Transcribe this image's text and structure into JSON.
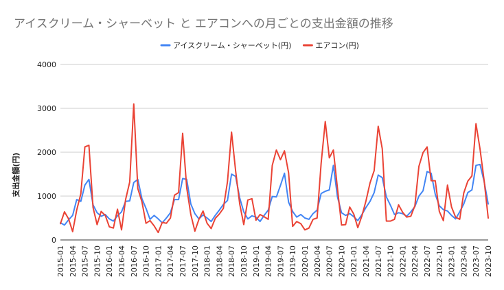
{
  "chart_data": {
    "type": "line",
    "title": "アイスクリーム・シャーベット と エアコンへの月ごとの支出金額の推移",
    "xlabel": "",
    "ylabel": "支出金額(円)",
    "ylim": [
      0,
      4000
    ],
    "yticks": [
      "0",
      "1000",
      "2000",
      "3000",
      "4000"
    ],
    "grid": true,
    "legend_position": "top",
    "x": [
      "2015-01",
      "2015-02",
      "2015-03",
      "2015-04",
      "2015-05",
      "2015-06",
      "2015-07",
      "2015-08",
      "2015-09",
      "2015-10",
      "2015-11",
      "2015-12",
      "2016-01",
      "2016-02",
      "2016-03",
      "2016-04",
      "2016-05",
      "2016-06",
      "2016-07",
      "2016-08",
      "2016-09",
      "2016-10",
      "2016-11",
      "2016-12",
      "2017-01",
      "2017-02",
      "2017-03",
      "2017-04",
      "2017-05",
      "2017-06",
      "2017-07",
      "2017-08",
      "2017-09",
      "2017-10",
      "2017-11",
      "2017-12",
      "2018-01",
      "2018-02",
      "2018-03",
      "2018-04",
      "2018-05",
      "2018-06",
      "2018-07",
      "2018-08",
      "2018-09",
      "2018-10",
      "2018-11",
      "2018-12",
      "2019-01",
      "2019-02",
      "2019-03",
      "2019-04",
      "2019-05",
      "2019-06",
      "2019-07",
      "2019-08",
      "2019-09",
      "2019-10",
      "2019-11",
      "2019-12",
      "2020-01",
      "2020-02",
      "2020-03",
      "2020-04",
      "2020-05",
      "2020-06",
      "2020-07",
      "2020-08",
      "2020-09",
      "2020-10",
      "2020-11",
      "2020-12",
      "2021-01",
      "2021-02",
      "2021-03",
      "2021-04",
      "2021-05",
      "2021-06",
      "2021-07",
      "2021-08",
      "2021-09",
      "2021-10",
      "2021-11",
      "2021-12",
      "2022-01",
      "2022-02",
      "2022-03",
      "2022-04",
      "2022-05",
      "2022-06",
      "2022-07",
      "2022-08",
      "2022-09",
      "2022-10",
      "2022-11",
      "2022-12",
      "2023-01",
      "2023-02",
      "2023-03",
      "2023-04",
      "2023-05",
      "2023-06",
      "2023-07",
      "2023-08",
      "2023-09",
      "2023-10"
    ],
    "x_tick_labels": [
      "2015-01",
      "2015-04",
      "2015-07",
      "2015-10",
      "2016-01",
      "2016-04",
      "2016-07",
      "2016-10",
      "2017-01",
      "2017-04",
      "2017-07",
      "2017-10",
      "2018-01",
      "2018-04",
      "2018-07",
      "2018-10",
      "2019-01",
      "2019-04",
      "2019-07",
      "2019-10",
      "2020-01",
      "2020-04",
      "2020-07",
      "2020-10",
      "2021-01",
      "2021-04",
      "2021-07",
      "2021-10",
      "2022-01",
      "2022-04",
      "2022-07",
      "2022-10",
      "2023-01",
      "2023-04",
      "2023-07",
      "2023-10"
    ],
    "series": [
      {
        "name": "アイスクリーム・シャーベット(円)",
        "color": "#4285f4",
        "values": [
          390,
          340,
          460,
          560,
          920,
          880,
          1250,
          1380,
          800,
          620,
          540,
          580,
          480,
          430,
          550,
          640,
          880,
          890,
          1310,
          1380,
          940,
          720,
          470,
          560,
          480,
          390,
          500,
          620,
          920,
          920,
          1400,
          1380,
          820,
          600,
          480,
          570,
          500,
          420,
          560,
          680,
          810,
          900,
          1500,
          1450,
          960,
          640,
          480,
          550,
          520,
          420,
          560,
          680,
          990,
          980,
          1240,
          1520,
          860,
          650,
          520,
          580,
          500,
          470,
          600,
          680,
          1060,
          1110,
          1140,
          1700,
          980,
          620,
          560,
          600,
          530,
          440,
          580,
          740,
          880,
          1080,
          1480,
          1420,
          980,
          790,
          580,
          620,
          600,
          540,
          640,
          760,
          1000,
          1120,
          1560,
          1520,
          1040,
          780,
          690,
          660,
          560,
          480,
          640,
          820,
          1080,
          1140,
          1700,
          1720,
          1330,
          820
        ]
      },
      {
        "name": "エアコン(円)",
        "color": "#ea4335",
        "values": [
          370,
          640,
          480,
          190,
          680,
          1050,
          2120,
          2160,
          740,
          350,
          650,
          560,
          300,
          270,
          700,
          230,
          920,
          1320,
          3100,
          1170,
          870,
          380,
          440,
          320,
          170,
          400,
          380,
          500,
          1020,
          1080,
          2430,
          1190,
          580,
          200,
          470,
          660,
          380,
          260,
          490,
          590,
          720,
          1330,
          2460,
          1580,
          820,
          350,
          910,
          940,
          450,
          580,
          530,
          470,
          1700,
          2050,
          1830,
          2030,
          1530,
          310,
          420,
          370,
          230,
          270,
          470,
          500,
          1750,
          2700,
          1870,
          2050,
          1170,
          340,
          350,
          750,
          590,
          280,
          550,
          890,
          1300,
          1580,
          2590,
          2080,
          430,
          430,
          470,
          800,
          630,
          520,
          540,
          780,
          1680,
          1990,
          2120,
          1350,
          1350,
          650,
          440,
          1250,
          750,
          520,
          470,
          1070,
          1340,
          1460,
          2650,
          2070,
          1350,
          500
        ]
      }
    ]
  }
}
